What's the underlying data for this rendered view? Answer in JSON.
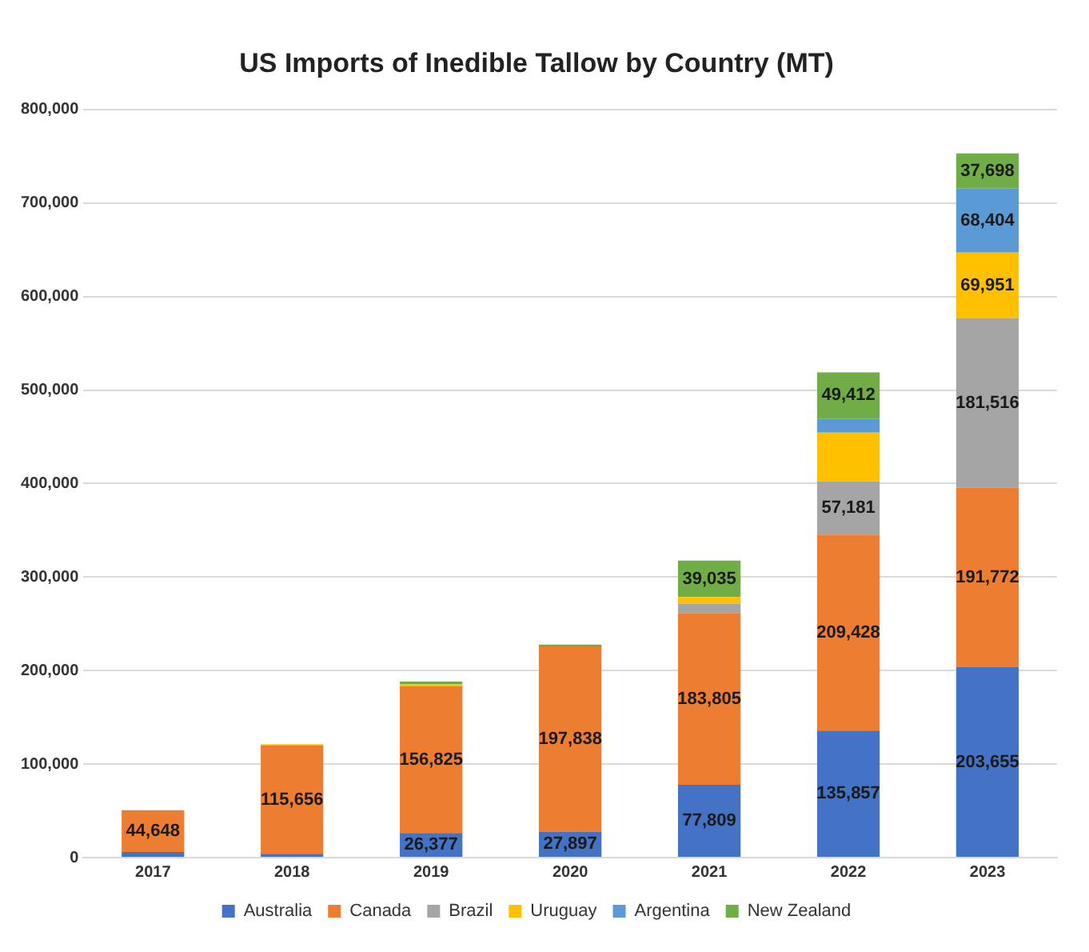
{
  "chart_data": {
    "type": "bar",
    "title": "US Imports of Inedible Tallow by Country (MT)",
    "categories": [
      "2017",
      "2018",
      "2019",
      "2020",
      "2021",
      "2022",
      "2023"
    ],
    "stacked": true,
    "ylim": [
      0,
      800000
    ],
    "yticks": [
      {
        "value": 0,
        "label": "0"
      },
      {
        "value": 100000,
        "label": "100,000"
      },
      {
        "value": 200000,
        "label": "200,000"
      },
      {
        "value": 300000,
        "label": "300,000"
      },
      {
        "value": 400000,
        "label": "400,000"
      },
      {
        "value": 500000,
        "label": "500,000"
      },
      {
        "value": 600000,
        "label": "600,000"
      },
      {
        "value": 700000,
        "label": "700,000"
      },
      {
        "value": 800000,
        "label": "800,000"
      }
    ],
    "grid": "y",
    "legend": "bottom",
    "series": [
      {
        "name": "Australia",
        "color": "#4472c4",
        "values": [
          6000,
          4000,
          26377,
          27897,
          77809,
          135857,
          203655
        ],
        "value_labels": [
          null,
          null,
          "26,377",
          "27,897",
          "77,809",
          "135,857",
          "203,655"
        ]
      },
      {
        "name": "Canada",
        "color": "#ed7d31",
        "values": [
          44648,
          115656,
          156825,
          197838,
          183805,
          209428,
          191772
        ],
        "value_labels": [
          "44,648",
          "115,656",
          "156,825",
          "197,838",
          "183,805",
          "209,428",
          "191,772"
        ]
      },
      {
        "name": "Brazil",
        "color": "#a5a5a5",
        "values": [
          0,
          0,
          0,
          0,
          10000,
          57181,
          181516
        ],
        "value_labels": [
          null,
          null,
          null,
          null,
          null,
          "57,181",
          "181,516"
        ]
      },
      {
        "name": "Uruguay",
        "color": "#ffc000",
        "values": [
          0,
          1500,
          2000,
          0,
          7000,
          52000,
          69951
        ],
        "value_labels": [
          null,
          null,
          null,
          null,
          null,
          null,
          "69,951"
        ]
      },
      {
        "name": "Argentina",
        "color": "#5b9bd5",
        "values": [
          0,
          0,
          0,
          0,
          0,
          15000,
          68404
        ],
        "value_labels": [
          null,
          null,
          null,
          null,
          null,
          null,
          "68,404"
        ]
      },
      {
        "name": "New Zealand",
        "color": "#70ad47",
        "values": [
          0,
          0,
          3000,
          2000,
          39035,
          49412,
          37698
        ],
        "value_labels": [
          null,
          null,
          null,
          null,
          "39,035",
          "49,412",
          "37,698"
        ]
      }
    ]
  }
}
